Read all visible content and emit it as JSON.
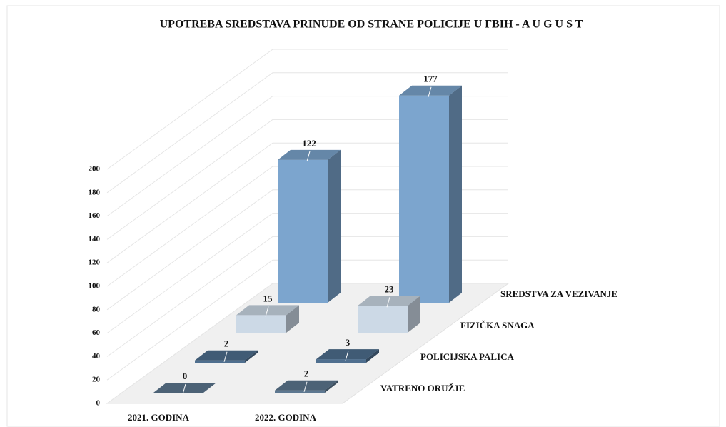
{
  "chart_data": {
    "type": "bar3d",
    "title": "UPOTREBA SREDSTAVA PRINUDE OD STRANE POLICIJE U FBIH  -   A U G U S T",
    "categories": [
      "2021. GODINA",
      "2022. GODINA"
    ],
    "series": [
      {
        "name": "VATRENO ORUŽJE",
        "color": "#5d7891",
        "values": [
          0,
          2
        ]
      },
      {
        "name": "POLICIJSKA PALICA",
        "color": "#4f6f8f",
        "values": [
          2,
          3
        ]
      },
      {
        "name": "FIZIČKA SNAGA",
        "color": "#ccd9e6",
        "values": [
          15,
          23
        ]
      },
      {
        "name": "SREDSTVA ZA VEZIVANJE",
        "color": "#7ca5ce",
        "values": [
          122,
          177
        ]
      }
    ],
    "ylim": [
      0,
      200
    ],
    "yticks": [
      0,
      20,
      40,
      60,
      80,
      100,
      120,
      140,
      160,
      180,
      200
    ],
    "grid": true
  }
}
